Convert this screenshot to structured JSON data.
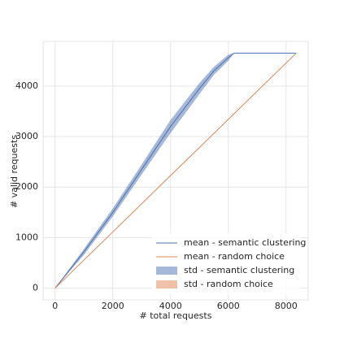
{
  "chart_data": {
    "type": "line",
    "x_label": "# total requests",
    "y_label": "# valid requests",
    "x": [
      0,
      1000,
      2000,
      3000,
      4000,
      5000,
      5500,
      6000,
      6200,
      8350
    ],
    "series": [
      {
        "name": "mean - semantic clustering",
        "color": "#4c72b0",
        "values": [
          0,
          720,
          1500,
          2350,
          3200,
          3950,
          4300,
          4560,
          4650,
          4650
        ]
      },
      {
        "name": "mean - random choice",
        "color": "#dd8452",
        "values": [
          0,
          557,
          1114,
          1671,
          2228,
          2784,
          3063,
          3341,
          3453,
          4650
        ]
      }
    ],
    "bands": [
      {
        "name": "std - semantic clustering",
        "color": "#4c72b0",
        "lower": [
          0,
          660,
          1420,
          2250,
          3070,
          3840,
          4220,
          4500,
          4650,
          4650
        ],
        "upper": [
          0,
          780,
          1580,
          2450,
          3330,
          4060,
          4380,
          4620,
          4650,
          4650
        ]
      },
      {
        "name": "std - random choice",
        "color": "#dd8452",
        "lower": [
          0,
          557,
          1114,
          1671,
          2228,
          2784,
          3063,
          3341,
          3453,
          4650
        ],
        "upper": [
          0,
          557,
          1114,
          1671,
          2228,
          2784,
          3063,
          3341,
          3453,
          4650
        ]
      }
    ],
    "xlim": [
      -417,
      8767
    ],
    "ylim": [
      -232,
      4882
    ],
    "xticks": [
      0,
      2000,
      4000,
      6000,
      8000
    ],
    "yticks": [
      0,
      1000,
      2000,
      3000,
      4000
    ],
    "grid": true,
    "legend": "lower right"
  }
}
